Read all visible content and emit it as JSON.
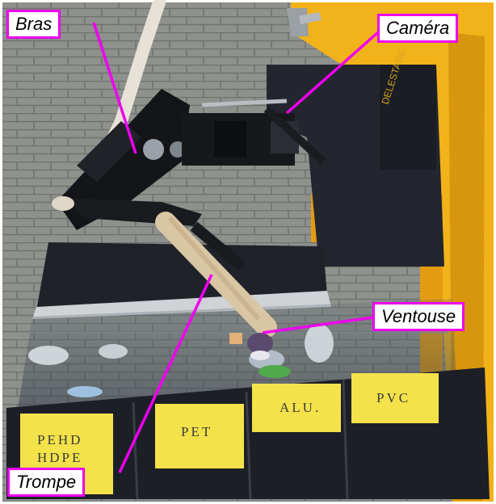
{
  "callouts": {
    "bras": "Bras",
    "camera": "Caméra",
    "ventouse": "Ventouse",
    "trompe": "Trompe"
  },
  "bins": {
    "pehd_line1": "PEHD",
    "pehd_line2": "HDPE",
    "pet": "PET",
    "alu": "ALU.",
    "pvc": "PVC"
  },
  "colors": {
    "callout_border": "#ee00ee",
    "leader_line": "#ee00ee",
    "machine_yellow": "#f2b21a",
    "bin_label": "#f3e24a"
  }
}
